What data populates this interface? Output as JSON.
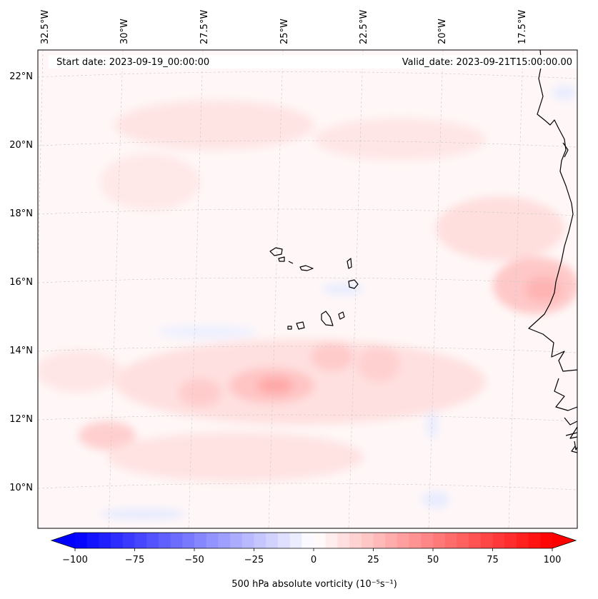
{
  "header": {
    "start_date": "Start date: 2023-09-19_00:00:00",
    "valid_date": "Valid_date: 2023-09-21T15:00:00.00"
  },
  "map": {
    "lon_labels": [
      "32.5°W",
      "30°W",
      "27.5°W",
      "25°W",
      "22.5°W",
      "20°W",
      "17.5°W"
    ],
    "lat_labels": [
      "22°N",
      "20°N",
      "18°N",
      "16°N",
      "14°N",
      "12°N",
      "10°N"
    ],
    "extent": {
      "lon_min": -32.7,
      "lon_max": -15.6,
      "lat_min": 8.9,
      "lat_max": 22.8
    }
  },
  "colorbar": {
    "min": -100,
    "max": 100,
    "ticks": [
      "−100",
      "−75",
      "−50",
      "−25",
      "0",
      "25",
      "50",
      "75",
      "100"
    ],
    "label": "500 hPa absolute vorticity (10⁻⁵s⁻¹)",
    "colormap": "bwr",
    "levels": 40
  },
  "colors": {
    "negative": "#0000ff",
    "positive": "#ff0000",
    "zero": "#ffffff",
    "coastline": "#000000",
    "grid": "#c8c8c8"
  }
}
